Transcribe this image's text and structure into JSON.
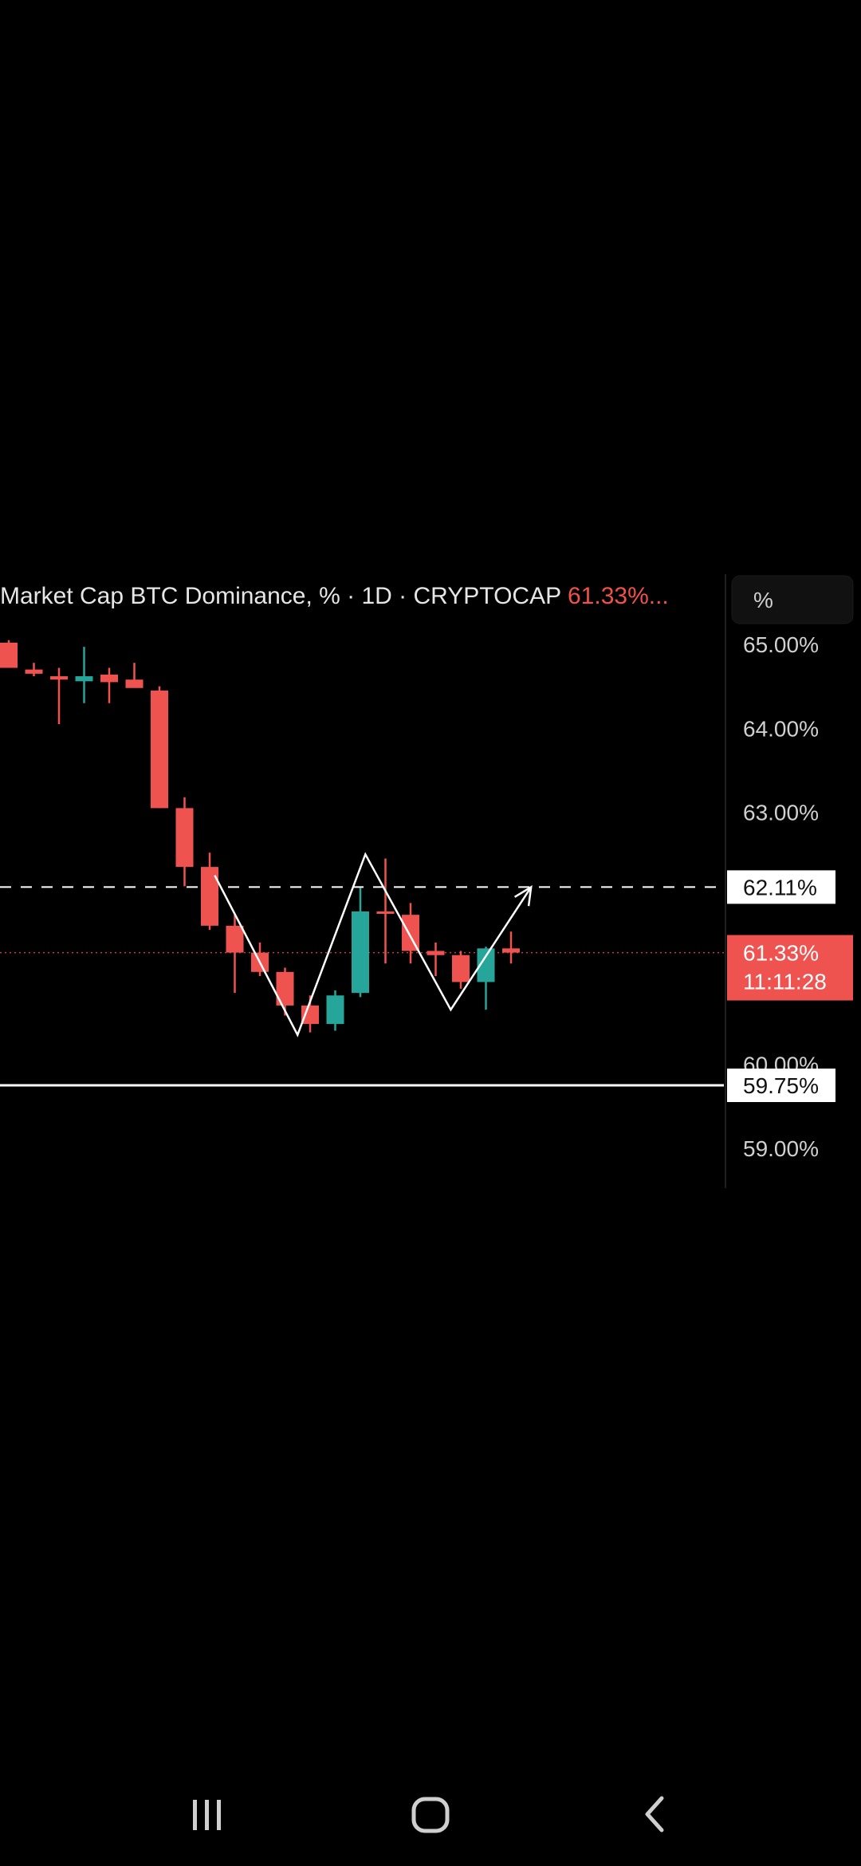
{
  "legend": {
    "title": "Market Cap BTC Dominance, % · 1D · CRYPTOCAP",
    "last_price": "61.33%..."
  },
  "price_scale": {
    "unit_label": "%",
    "ticks": [
      "65.00%",
      "64.00%",
      "63.00%",
      "60.00%",
      "59.00%"
    ],
    "tick_values": [
      65.0,
      64.0,
      63.0,
      60.0,
      59.0
    ],
    "resistance_tag": "62.11%",
    "resistance_value": 62.11,
    "current_tag": "61.33%",
    "current_value": 61.33,
    "countdown": "11:11:28",
    "support_tag": "59.75%",
    "support_value": 59.75
  },
  "colors": {
    "up": "#26a69a",
    "down": "#ef5350",
    "current_tag_bg": "#ef5350",
    "line": "#ffffff"
  },
  "chart_data": {
    "type": "candlestick",
    "title": "Market Cap BTC Dominance, % · 1D · CRYPTOCAP",
    "ylim": [
      58.6,
      65.1
    ],
    "grid": false,
    "candles": [
      {
        "o": 65.02,
        "h": 65.05,
        "l": 64.72,
        "c": 64.72
      },
      {
        "o": 64.7,
        "h": 64.78,
        "l": 64.62,
        "c": 64.65
      },
      {
        "o": 64.62,
        "h": 64.72,
        "l": 64.05,
        "c": 64.58
      },
      {
        "o": 64.56,
        "h": 64.97,
        "l": 64.3,
        "c": 64.62
      },
      {
        "o": 64.64,
        "h": 64.72,
        "l": 64.3,
        "c": 64.55
      },
      {
        "o": 64.58,
        "h": 64.78,
        "l": 64.5,
        "c": 64.48
      },
      {
        "o": 64.45,
        "h": 64.5,
        "l": 63.05,
        "c": 63.05
      },
      {
        "o": 63.05,
        "h": 63.18,
        "l": 62.12,
        "c": 62.35
      },
      {
        "o": 62.35,
        "h": 62.52,
        "l": 61.6,
        "c": 61.65
      },
      {
        "o": 61.65,
        "h": 61.78,
        "l": 60.85,
        "c": 61.33
      },
      {
        "o": 61.33,
        "h": 61.45,
        "l": 61.05,
        "c": 61.1
      },
      {
        "o": 61.1,
        "h": 61.15,
        "l": 60.58,
        "c": 60.7
      },
      {
        "o": 60.7,
        "h": 60.82,
        "l": 60.38,
        "c": 60.48
      },
      {
        "o": 60.48,
        "h": 60.88,
        "l": 60.4,
        "c": 60.82
      },
      {
        "o": 60.85,
        "h": 62.1,
        "l": 60.8,
        "c": 61.82
      },
      {
        "o": 61.82,
        "h": 62.45,
        "l": 61.2,
        "c": 61.8
      },
      {
        "o": 61.78,
        "h": 61.92,
        "l": 61.2,
        "c": 61.35
      },
      {
        "o": 61.35,
        "h": 61.45,
        "l": 61.05,
        "c": 61.3
      },
      {
        "o": 61.3,
        "h": 61.35,
        "l": 60.9,
        "c": 60.98
      },
      {
        "o": 60.98,
        "h": 61.4,
        "l": 60.65,
        "c": 61.38
      },
      {
        "o": 61.38,
        "h": 61.58,
        "l": 61.2,
        "c": 61.33
      }
    ],
    "pattern_path": [
      {
        "i": 8.2,
        "y": 62.25
      },
      {
        "i": 11.5,
        "y": 60.35
      },
      {
        "i": 14.2,
        "y": 62.5
      },
      {
        "i": 17.6,
        "y": 60.65
      },
      {
        "i": 20.8,
        "y": 62.11
      }
    ],
    "horizontal_lines": [
      {
        "value": 62.11,
        "style": "dashed"
      },
      {
        "value": 61.33,
        "style": "dotted"
      },
      {
        "value": 59.75,
        "style": "solid"
      }
    ]
  }
}
